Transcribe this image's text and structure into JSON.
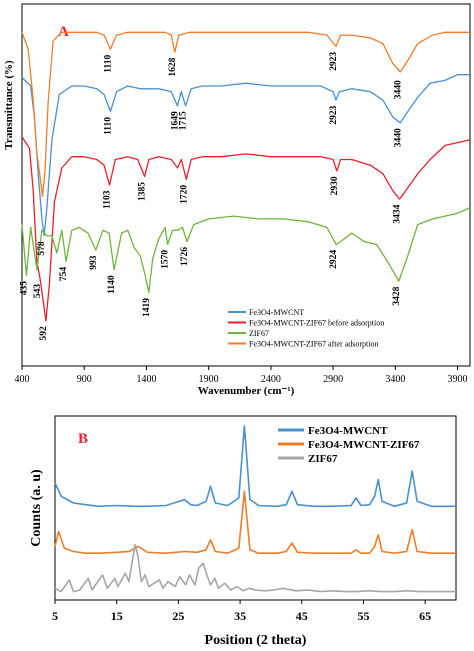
{
  "chart_data": [
    {
      "panel_label": "A",
      "type": "line",
      "xlabel": "Wavenumber (cm⁻¹)",
      "ylabel": "Transmittance (%)",
      "xlim": [
        400,
        4000
      ],
      "x_ticks": [
        400,
        900,
        1400,
        1900,
        2400,
        2900,
        3400,
        3900
      ],
      "series": [
        {
          "name": "Fe3O4-MWCNT",
          "color": "#4a8fd0",
          "x": [
            400,
            470,
            500,
            530,
            560,
            578,
            600,
            640,
            700,
            800,
            900,
            1000,
            1060,
            1110,
            1160,
            1250,
            1350,
            1500,
            1600,
            1649,
            1680,
            1715,
            1760,
            1850,
            2000,
            2200,
            2400,
            2600,
            2800,
            2900,
            2923,
            2950,
            3050,
            3200,
            3300,
            3380,
            3440,
            3500,
            3580,
            3680,
            3800,
            3900,
            4000
          ],
          "y": [
            -1.0,
            -1.3,
            -2.4,
            -4.4,
            -6.0,
            -6.6,
            -5.6,
            -3.2,
            -1.6,
            -1.3,
            -1.3,
            -1.4,
            -1.6,
            -2.2,
            -1.5,
            -1.3,
            -1.4,
            -1.4,
            -1.5,
            -2.0,
            -1.5,
            -2.0,
            -1.4,
            -1.3,
            -1.3,
            -1.2,
            -1.3,
            -1.3,
            -1.3,
            -1.5,
            -1.8,
            -1.5,
            -1.4,
            -1.5,
            -1.8,
            -2.4,
            -2.6,
            -2.2,
            -1.7,
            -1.2,
            -1.1,
            -0.9,
            -0.9
          ]
        },
        {
          "name": "Fe3O4-MWCNT-ZIF67 before adsorption",
          "color": "#e8202a",
          "x": [
            400,
            460,
            490,
            520,
            545,
            570,
            592,
            620,
            660,
            720,
            800,
            900,
            1000,
            1060,
            1103,
            1150,
            1250,
            1330,
            1385,
            1420,
            1500,
            1600,
            1650,
            1680,
            1720,
            1760,
            1850,
            2000,
            2200,
            2400,
            2600,
            2800,
            2900,
            2930,
            2960,
            3050,
            3200,
            3300,
            3380,
            3434,
            3500,
            3580,
            3680,
            3800,
            3900,
            4000
          ],
          "y": [
            -3.1,
            -3.5,
            -5.0,
            -7.5,
            -8.1,
            -8.9,
            -9.6,
            -8.3,
            -5.4,
            -4.2,
            -3.8,
            -3.8,
            -3.9,
            -4.1,
            -4.8,
            -3.9,
            -3.8,
            -3.9,
            -4.5,
            -3.9,
            -3.8,
            -3.9,
            -4.2,
            -3.9,
            -4.6,
            -3.9,
            -3.8,
            -3.8,
            -3.7,
            -3.8,
            -3.8,
            -3.8,
            -3.9,
            -4.3,
            -3.9,
            -3.9,
            -4.1,
            -4.4,
            -5.0,
            -5.3,
            -4.9,
            -4.4,
            -3.9,
            -3.4,
            -3.3,
            -3.2
          ]
        },
        {
          "name": "ZIF67",
          "color": "#6fb43c",
          "x": [
            400,
            435,
            470,
            520,
            560,
            600,
            640,
            680,
            720,
            754,
            800,
            860,
            930,
            993,
            1050,
            1100,
            1140,
            1200,
            1250,
            1300,
            1350,
            1390,
            1419,
            1450,
            1500,
            1550,
            1570,
            1610,
            1650,
            1690,
            1726,
            1780,
            1900,
            2100,
            2300,
            2500,
            2700,
            2850,
            2924,
            2960,
            3050,
            3150,
            3250,
            3350,
            3428,
            3500,
            3580,
            3700,
            3800,
            3900,
            4000
          ],
          "y": [
            -6.2,
            -8.0,
            -6.3,
            -7.8,
            -6.4,
            -6.6,
            -6.6,
            -7.2,
            -6.4,
            -7.5,
            -6.4,
            -6.3,
            -6.5,
            -7.1,
            -6.4,
            -6.5,
            -7.8,
            -6.5,
            -6.4,
            -7.0,
            -7.3,
            -8.0,
            -8.6,
            -7.4,
            -6.7,
            -6.3,
            -6.9,
            -6.4,
            -6.4,
            -6.3,
            -6.8,
            -6.2,
            -6.0,
            -5.9,
            -6.0,
            -6.0,
            -6.1,
            -6.3,
            -6.9,
            -6.8,
            -6.5,
            -6.8,
            -6.9,
            -7.6,
            -8.2,
            -7.3,
            -6.2,
            -6.0,
            -5.9,
            -5.8,
            -5.6
          ]
        },
        {
          "name": "Fe3O4-MWCNT-ZIF67 after adsorption",
          "color": "#f07c28",
          "x": [
            400,
            450,
            490,
            520,
            545,
            565,
            585,
            610,
            650,
            720,
            800,
            900,
            1000,
            1060,
            1110,
            1160,
            1250,
            1400,
            1550,
            1600,
            1628,
            1660,
            1750,
            1900,
            2100,
            2300,
            2500,
            2700,
            2850,
            2923,
            2960,
            3050,
            3200,
            3300,
            3380,
            3440,
            3500,
            3580,
            3700,
            3800,
            3900,
            4000
          ],
          "y": [
            0.6,
            0.0,
            -1.8,
            -3.7,
            -4.5,
            -5.2,
            -4.3,
            -1.9,
            0.3,
            0.6,
            0.6,
            0.6,
            0.6,
            0.5,
            0.0,
            0.5,
            0.6,
            0.6,
            0.6,
            0.5,
            -0.1,
            0.5,
            0.6,
            0.6,
            0.6,
            0.6,
            0.6,
            0.6,
            0.5,
            0.1,
            0.5,
            0.5,
            0.4,
            0.2,
            -0.5,
            -0.8,
            -0.4,
            0.2,
            0.5,
            0.6,
            0.6,
            0.6
          ]
        }
      ],
      "annotations": [
        {
          "text": "1110",
          "x": 1110,
          "y": -0.3
        },
        {
          "text": "1628",
          "x": 1628,
          "y": -0.4
        },
        {
          "text": "2923",
          "x": 2923,
          "y": -0.2
        },
        {
          "text": "3440",
          "x": 3440,
          "y": -1.2
        },
        {
          "text": "578",
          "x": 578,
          "y": -6.9
        },
        {
          "text": "1110",
          "x": 1110,
          "y": -2.5
        },
        {
          "text": "1649",
          "x": 1649,
          "y": -2.3
        },
        {
          "text": "1715",
          "x": 1715,
          "y": -2.3
        },
        {
          "text": "2923",
          "x": 2923,
          "y": -2.1
        },
        {
          "text": "3440",
          "x": 3440,
          "y": -2.9
        },
        {
          "text": "543",
          "x": 543,
          "y": -8.4
        },
        {
          "text": "1103",
          "x": 1103,
          "y": -5.1
        },
        {
          "text": "1385",
          "x": 1385,
          "y": -4.8
        },
        {
          "text": "1720",
          "x": 1720,
          "y": -4.9
        },
        {
          "text": "2930",
          "x": 2930,
          "y": -4.6
        },
        {
          "text": "3434",
          "x": 3434,
          "y": -5.6
        },
        {
          "text": "592",
          "x": 592,
          "y": -9.9
        },
        {
          "text": "435",
          "x": 435,
          "y": -8.3
        },
        {
          "text": "754",
          "x": 754,
          "y": -7.8
        },
        {
          "text": "993",
          "x": 993,
          "y": -7.4
        },
        {
          "text": "1140",
          "x": 1140,
          "y": -8.1
        },
        {
          "text": "1419",
          "x": 1419,
          "y": -8.9
        },
        {
          "text": "1570",
          "x": 1570,
          "y": -7.2
        },
        {
          "text": "1726",
          "x": 1726,
          "y": -7.1
        },
        {
          "text": "2924",
          "x": 2924,
          "y": -7.2
        },
        {
          "text": "3428",
          "x": 3428,
          "y": -8.5
        }
      ],
      "legend_position": "bottom-right",
      "grid": false
    },
    {
      "panel_label": "B",
      "type": "line",
      "xlabel": "Position (2 theta)",
      "ylabel": "Counts (a. u)",
      "xlim": [
        5,
        70
      ],
      "x_ticks": [
        5,
        15,
        25,
        35,
        45,
        55,
        65
      ],
      "series": [
        {
          "name": "Fe3O4-MWCNT",
          "color": "#4a8fd0",
          "x": [
            5,
            6,
            8,
            10,
            12,
            15,
            18,
            20,
            23,
            26,
            27,
            28,
            29.5,
            30.2,
            31,
            33,
            34.8,
            35.7,
            36.6,
            38,
            41,
            42.5,
            43.4,
            44.3,
            47,
            50,
            53,
            53.8,
            54.6,
            56,
            56.8,
            57.4,
            58,
            60,
            62,
            62.9,
            63.7,
            66,
            68,
            70
          ],
          "y": [
            7.4,
            6.6,
            6.2,
            6.1,
            6.0,
            6.05,
            6.0,
            6.0,
            6.05,
            6.4,
            6.1,
            6.05,
            6.3,
            7.2,
            6.2,
            6.05,
            6.5,
            10.8,
            6.4,
            6.05,
            6.0,
            6.1,
            6.9,
            6.1,
            6.0,
            6.0,
            6.05,
            6.5,
            6.05,
            6.1,
            6.6,
            7.6,
            6.3,
            6.0,
            6.2,
            8.1,
            6.3,
            6.0,
            6.0,
            6.0
          ]
        },
        {
          "name": "Fe3O4-MWCNT-ZIF67",
          "color": "#f07c28",
          "x": [
            5,
            5.6,
            6.5,
            8,
            10,
            12,
            15,
            17,
            18.5,
            20,
            23,
            26,
            28,
            29.5,
            30.2,
            31,
            33,
            34.8,
            35.7,
            36.6,
            38,
            41,
            42.5,
            43.4,
            44.3,
            47,
            50,
            53,
            53.8,
            54.6,
            56,
            56.8,
            57.4,
            58,
            60,
            62,
            62.9,
            63.7,
            66,
            68,
            70
          ],
          "y": [
            3.6,
            4.5,
            3.5,
            3.3,
            3.2,
            3.2,
            3.25,
            3.3,
            3.6,
            3.25,
            3.2,
            3.3,
            3.25,
            3.4,
            4.0,
            3.3,
            3.2,
            3.5,
            6.9,
            3.4,
            3.2,
            3.2,
            3.3,
            3.8,
            3.25,
            3.2,
            3.2,
            3.2,
            3.4,
            3.2,
            3.2,
            3.6,
            4.3,
            3.3,
            3.2,
            3.3,
            4.6,
            3.3,
            3.2,
            3.2,
            3.2
          ]
        },
        {
          "name": "ZIF67",
          "color": "#a6a6a6",
          "x": [
            5,
            6,
            7.3,
            8,
            9,
            10.4,
            11,
            12.7,
            13.5,
            14.7,
            15.2,
            16.4,
            17.0,
            17.6,
            18.0,
            18.4,
            19.0,
            19.6,
            20.2,
            21.9,
            22.5,
            23.3,
            24.5,
            25.2,
            26.2,
            26.8,
            27.7,
            28.3,
            29.0,
            29.6,
            30.2,
            30.9,
            31.5,
            32.5,
            33.5,
            34.5,
            35.5,
            36.5,
            37.5,
            39,
            40.5,
            42,
            44,
            46,
            48,
            50,
            52,
            54,
            56,
            58,
            60,
            62,
            64,
            66,
            68,
            70
          ],
          "y": [
            1.1,
            0.9,
            1.6,
            0.9,
            1.0,
            1.7,
            1.0,
            1.9,
            1.1,
            1.7,
            1.2,
            2.0,
            1.5,
            2.9,
            3.7,
            3.1,
            1.5,
            1.9,
            1.2,
            1.6,
            1.1,
            1.5,
            1.2,
            1.8,
            1.3,
            1.9,
            1.3,
            2.3,
            2.6,
            1.9,
            1.3,
            1.7,
            1.1,
            1.4,
            1.0,
            1.2,
            0.95,
            1.1,
            1.0,
            0.95,
            1.0,
            1.1,
            0.95,
            1.0,
            0.9,
            0.95,
            0.9,
            0.9,
            0.95,
            0.9,
            0.9,
            0.95,
            0.9,
            0.9,
            0.9,
            0.9
          ]
        }
      ],
      "legend_position": "top-right",
      "grid": false
    }
  ]
}
